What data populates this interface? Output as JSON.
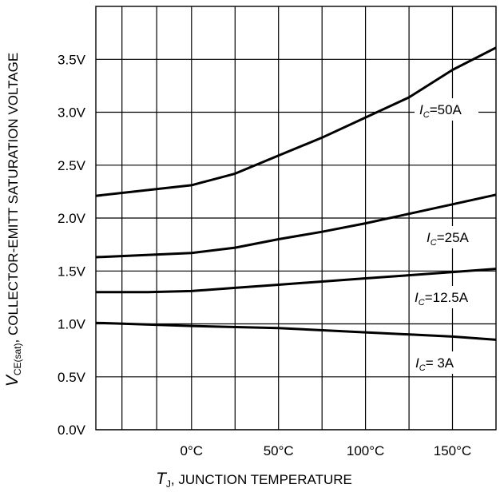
{
  "chart_data": {
    "type": "line",
    "title": "",
    "xlabel": {
      "symbol": "T",
      "subscript": "J",
      "text": ", JUNCTION TEMPERATURE"
    },
    "ylabel": {
      "symbol": "V",
      "subscript": "CE(sat)",
      "text": ", COLLECTOR-EMITT SATURATION VOLTAGE"
    },
    "xlim": [
      -55,
      175
    ],
    "ylim": [
      0,
      4
    ],
    "grid": true,
    "x_ticks": [
      {
        "value": 0,
        "label": "0°C"
      },
      {
        "value": 50,
        "label": "50°C"
      },
      {
        "value": 100,
        "label": "100°C"
      },
      {
        "value": 150,
        "label": "150°C"
      }
    ],
    "y_ticks": [
      {
        "value": 0,
        "label": "0.0V"
      },
      {
        "value": 0.5,
        "label": "0.5V"
      },
      {
        "value": 1.0,
        "label": "1.0V"
      },
      {
        "value": 1.5,
        "label": "1.5V"
      },
      {
        "value": 2.0,
        "label": "2.0V"
      },
      {
        "value": 2.5,
        "label": "2.5V"
      },
      {
        "value": 3.0,
        "label": "3.0V"
      },
      {
        "value": 3.5,
        "label": "3.5V"
      }
    ],
    "series": [
      {
        "name": "50A",
        "label_prefix": "I",
        "label_sub": "C",
        "label_value": "=50A",
        "x": [
          -55,
          0,
          25,
          50,
          75,
          100,
          125,
          150,
          175
        ],
        "y": [
          2.21,
          2.31,
          2.42,
          2.59,
          2.76,
          2.95,
          3.14,
          3.4,
          3.61
        ]
      },
      {
        "name": "25A",
        "label_prefix": "I",
        "label_sub": "C",
        "label_value": "=25A",
        "x": [
          -55,
          0,
          25,
          50,
          75,
          100,
          125,
          150,
          175
        ],
        "y": [
          1.63,
          1.67,
          1.72,
          1.8,
          1.87,
          1.95,
          2.04,
          2.13,
          2.22
        ]
      },
      {
        "name": "12.5A",
        "label_prefix": "I",
        "label_sub": "C",
        "label_value": "=12.5A",
        "x": [
          -55,
          -25,
          0,
          25,
          50,
          75,
          100,
          125,
          150,
          175
        ],
        "y": [
          1.3,
          1.3,
          1.31,
          1.34,
          1.37,
          1.4,
          1.43,
          1.46,
          1.49,
          1.52
        ]
      },
      {
        "name": "3A",
        "label_prefix": "I",
        "label_sub": "C",
        "label_value": "= 3A",
        "x": [
          -55,
          0,
          50,
          100,
          150,
          175
        ],
        "y": [
          1.01,
          0.98,
          0.96,
          0.92,
          0.88,
          0.85
        ]
      }
    ],
    "vertical_grid": [
      -40,
      -20,
      0,
      25,
      50,
      75,
      100,
      125,
      150
    ]
  }
}
